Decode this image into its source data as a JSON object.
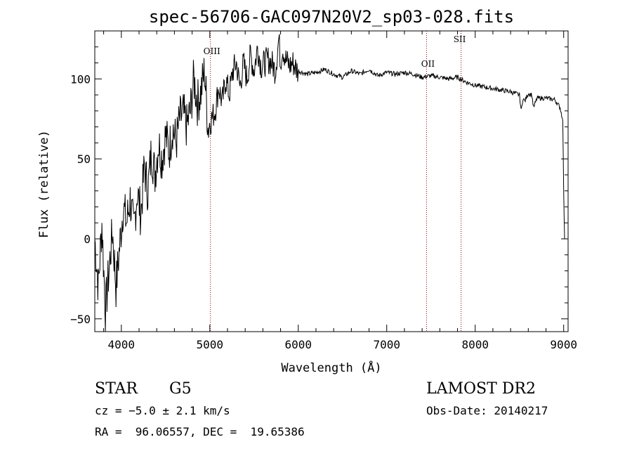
{
  "chart_data": {
    "type": "line",
    "title": "spec-56706-GAC097N20V2_sp03-028.fits",
    "xlabel": "Wavelength (Å)",
    "ylabel": "Flux (relative)",
    "xlim": [
      3700,
      9050
    ],
    "ylim": [
      -58,
      130
    ],
    "x_ticks": [
      4000,
      5000,
      6000,
      7000,
      8000,
      9000
    ],
    "y_ticks": [
      -50,
      0,
      50,
      100
    ],
    "series": [
      {
        "x": [
          3700,
          3740,
          3780,
          3820,
          3860,
          3900,
          3940,
          3980,
          4020,
          4060,
          4100,
          4140,
          4180,
          4220,
          4260,
          4300,
          4340,
          4380,
          4420,
          4460,
          4500,
          4540,
          4580,
          4620,
          4660,
          4700,
          4740,
          4780,
          4820,
          4860,
          4900,
          4940,
          4980,
          5020,
          5060,
          5100,
          5140,
          5180,
          5220,
          5260,
          5300,
          5340,
          5380,
          5420,
          5460,
          5500,
          5540,
          5580,
          5620,
          5660,
          5700,
          5740,
          5780,
          5800,
          5820,
          5860,
          5900,
          5940,
          5980,
          6000,
          6100,
          6200,
          6300,
          6400,
          6500,
          6600,
          6700,
          6800,
          6900,
          7000,
          7100,
          7200,
          7300,
          7400,
          7500,
          7600,
          7700,
          7800,
          7900,
          8000,
          8100,
          8200,
          8300,
          8400,
          8500,
          8520,
          8540,
          8560,
          8600,
          8640,
          8660,
          8700,
          8800,
          8900,
          8960,
          8990,
          9000,
          9010
        ],
        "y": [
          0,
          -30,
          10,
          -45,
          -20,
          5,
          -30,
          -5,
          20,
          10,
          25,
          5,
          30,
          15,
          45,
          30,
          55,
          40,
          60,
          50,
          65,
          55,
          70,
          60,
          75,
          78,
          70,
          80,
          100,
          85,
          92,
          105,
          70,
          75,
          80,
          95,
          85,
          100,
          90,
          105,
          110,
          95,
          110,
          100,
          115,
          105,
          120,
          108,
          110,
          112,
          110,
          105,
          125,
          110,
          120,
          112,
          108,
          110,
          106,
          105,
          103,
          104,
          106,
          103,
          101,
          105,
          103,
          106,
          102,
          104,
          103,
          104,
          103,
          101,
          102,
          101,
          100,
          101,
          98,
          96,
          95,
          94,
          93,
          92,
          90,
          80,
          88,
          86,
          91,
          90,
          82,
          88,
          88,
          87,
          82,
          74,
          30,
          0
        ]
      }
    ],
    "annotations": [
      {
        "label": "OIII",
        "x": 5007
      },
      {
        "label": "OII",
        "x": 7450
      },
      {
        "label": "SII",
        "x": 7840
      }
    ],
    "grid": false
  },
  "info": {
    "class": "STAR",
    "subclass": "G5",
    "survey": "LAMOST DR2",
    "cz": "cz = −5.0 ± 2.1 km/s",
    "obs_date": "Obs-Date: 20140217",
    "coords": "RA =  96.06557, DEC =  19.65386"
  }
}
